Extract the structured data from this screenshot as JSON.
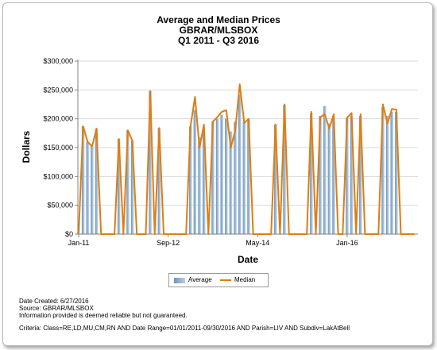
{
  "chart_data": {
    "type": "bar",
    "title": "Average and Median Prices",
    "subtitle_1": "GBRAR/MLSBOX",
    "subtitle_2": "Q1 2011 - Q3 2016",
    "xlabel": "Date",
    "ylabel": "Dollars",
    "ylim": [
      0,
      300000
    ],
    "y_ticks": [
      0,
      50000,
      100000,
      150000,
      200000,
      250000,
      300000
    ],
    "y_tick_labels": [
      "$0",
      "$50,000",
      "$100,000",
      "$150,000",
      "$200,000",
      "$250,000",
      "$300,000"
    ],
    "x_tick_labels": [
      "Jan-11",
      "Sep-12",
      "May-14",
      "Jan-16"
    ],
    "x_tick_indices": [
      0,
      20,
      40,
      60
    ],
    "x_start": "Jan-11",
    "x_interval": "month",
    "grid": "horizontal",
    "legend_position": "bottom",
    "series": [
      {
        "name": "Average",
        "style": "bar",
        "color": "#9ab6d3",
        "values": [
          0,
          187000,
          160000,
          152000,
          183000,
          0,
          0,
          0,
          0,
          165000,
          0,
          180000,
          162000,
          0,
          0,
          0,
          248000,
          0,
          184000,
          0,
          0,
          0,
          0,
          0,
          0,
          187000,
          215000,
          168000,
          178000,
          0,
          195000,
          200000,
          207000,
          200000,
          178000,
          195000,
          242000,
          195000,
          198000,
          0,
          0,
          0,
          0,
          0,
          190000,
          0,
          224000,
          0,
          0,
          0,
          0,
          0,
          210000,
          0,
          205000,
          222000,
          192000,
          203000,
          0,
          0,
          202000,
          205000,
          0,
          205000,
          0,
          0,
          0,
          0,
          220000,
          205000,
          212000,
          212000,
          0,
          0,
          0,
          0
        ]
      },
      {
        "name": "Median",
        "style": "line",
        "color": "#e07d10",
        "values": [
          0,
          187000,
          160000,
          152000,
          183000,
          0,
          0,
          0,
          0,
          165000,
          0,
          180000,
          162000,
          0,
          0,
          0,
          248000,
          0,
          184000,
          0,
          0,
          0,
          0,
          0,
          0,
          187000,
          238000,
          150000,
          190000,
          0,
          195000,
          203000,
          212000,
          215000,
          150000,
          180000,
          260000,
          193000,
          200000,
          0,
          0,
          0,
          0,
          0,
          190000,
          0,
          225000,
          0,
          0,
          0,
          0,
          0,
          212000,
          0,
          203000,
          208000,
          183000,
          208000,
          0,
          0,
          202000,
          210000,
          0,
          208000,
          0,
          0,
          0,
          0,
          225000,
          192000,
          217000,
          216000,
          0,
          0,
          0,
          0
        ]
      }
    ]
  },
  "legend": {
    "average_label": "Average",
    "median_label": "Median"
  },
  "footer": {
    "date_created": "Date Created: 6/27/2016",
    "source": "Source: GBRAR/MLSBOX",
    "disclaimer": "Information provided is deemed reliable but not guaranteed.",
    "criteria": "Criteria: Class=RE,LD,MU,CM,RN AND Date Range=01/01/2011-09/30/2016 AND Parish=LIV AND Subdiv=LakAtBell"
  }
}
